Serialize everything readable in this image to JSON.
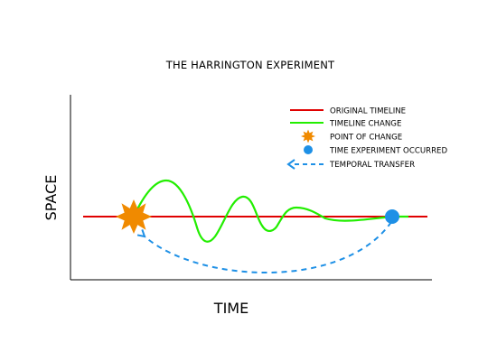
{
  "diagram": {
    "title": "THE HARRINGTON EXPERIMENT",
    "x_axis_label": "TIME",
    "y_axis_label": "SPACE",
    "legend": [
      {
        "label": "ORIGINAL TIMELINE",
        "symbol": "line",
        "color": "#e00000"
      },
      {
        "label": "TIMELINE CHANGE",
        "symbol": "line",
        "color": "#22ee00"
      },
      {
        "label": "POINT OF CHANGE",
        "symbol": "star-burst-icon",
        "color": "#f08a00"
      },
      {
        "label": "TIME EXPERIMENT OCCURRED",
        "symbol": "circle-icon",
        "color": "#1e90e6"
      },
      {
        "label": "TEMPORAL TRANSFER",
        "symbol": "dashed-arrow-left",
        "color": "#1e90e6"
      }
    ],
    "colors": {
      "original_timeline": "#e00000",
      "timeline_change": "#22ee00",
      "point_of_change": "#f08a00",
      "experiment_point": "#1e90e6",
      "temporal_transfer": "#1e90e6",
      "axes": "#000000"
    }
  }
}
